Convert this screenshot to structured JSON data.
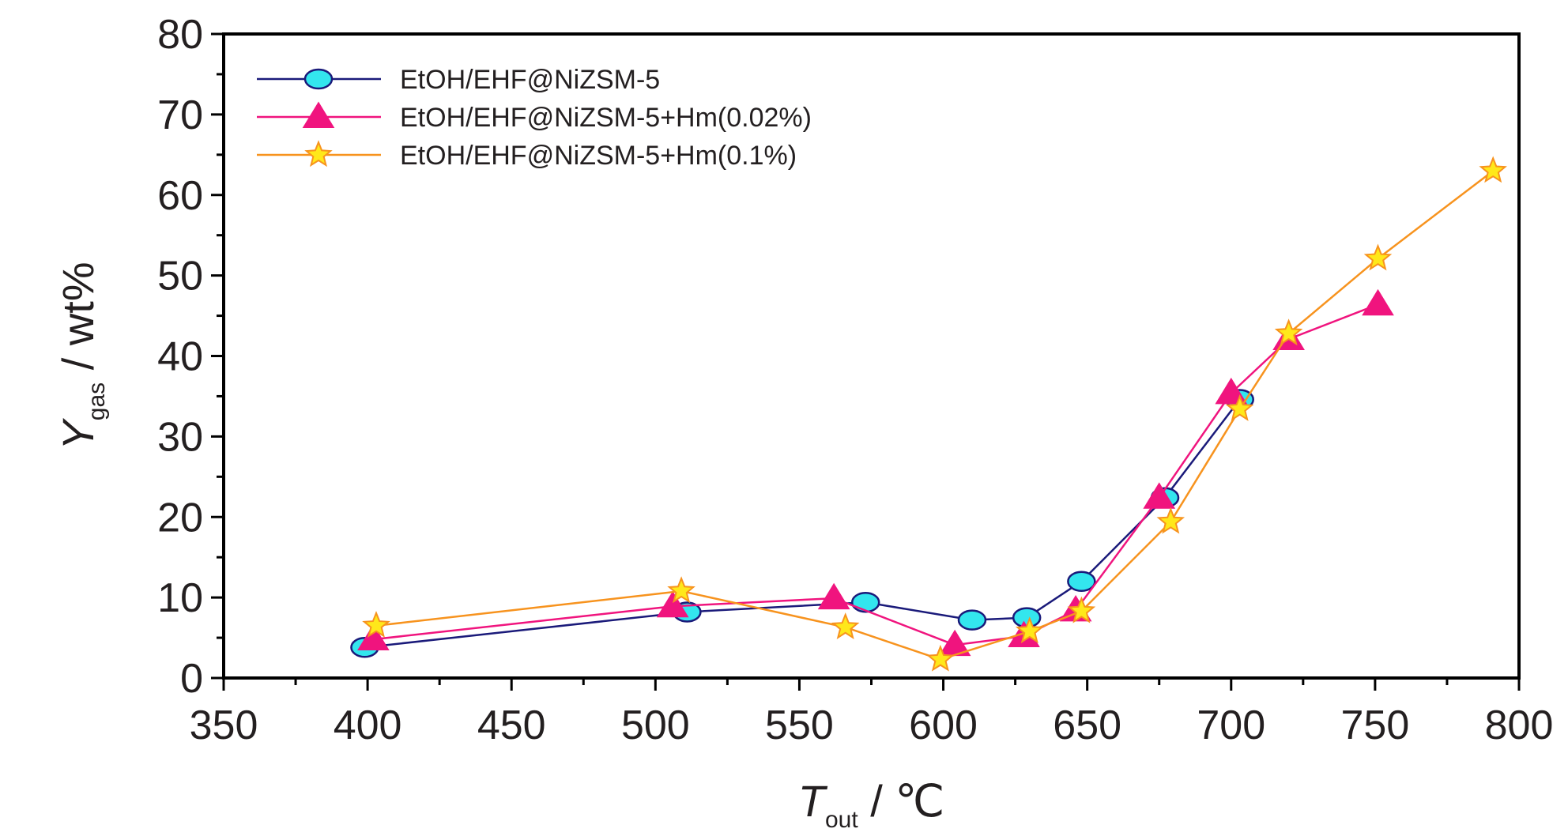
{
  "chart_data": {
    "type": "line",
    "title": "",
    "xlabel": {
      "main": "T",
      "sub": "out",
      "unit": " / ℃"
    },
    "ylabel": {
      "main": "Y",
      "sub": "gas",
      "unit": " / wt%"
    },
    "xlim": [
      350,
      800
    ],
    "ylim": [
      0,
      80
    ],
    "xticks": [
      350,
      400,
      450,
      500,
      550,
      600,
      650,
      700,
      750,
      800
    ],
    "yticks": [
      0,
      10,
      20,
      30,
      40,
      50,
      60,
      70,
      80
    ],
    "xtick_labels": [
      "350",
      "400",
      "450",
      "500",
      "550",
      "600",
      "650",
      "700",
      "750",
      "800"
    ],
    "ytick_labels": [
      "0",
      "10",
      "20",
      "30",
      "40",
      "50",
      "60",
      "70",
      "80"
    ],
    "grid": false,
    "legend_position": "top-left",
    "series": [
      {
        "name": "EtOH/EHF@NiZSM-5",
        "color": "#1a1a7a",
        "marker": "circle",
        "marker_fill": "#33e6ee",
        "x": [
          399,
          511,
          573,
          610,
          629,
          648,
          677,
          703
        ],
        "y": [
          3.8,
          8.2,
          9.4,
          7.2,
          7.5,
          12.0,
          22.4,
          34.6
        ]
      },
      {
        "name": "EtOH/EHF@NiZSM-5+Hm(0.02%)",
        "color": "#f0147e",
        "marker": "triangle",
        "marker_fill": "#f0147e",
        "x": [
          402,
          506,
          562,
          604,
          628,
          646,
          675,
          700,
          720,
          751
        ],
        "y": [
          4.8,
          8.9,
          9.9,
          4.1,
          5.2,
          8.4,
          22.4,
          35.4,
          42.1,
          46.4
        ]
      },
      {
        "name": "EtOH/EHF@NiZSM-5+Hm(0.1%)",
        "color": "#f7931e",
        "marker": "star",
        "marker_fill": "#ffe81a",
        "x": [
          403,
          509,
          566,
          599,
          630,
          648,
          679,
          703,
          720,
          751,
          791
        ],
        "y": [
          6.5,
          10.8,
          6.3,
          2.3,
          5.8,
          8.3,
          19.4,
          33.4,
          42.8,
          52.1,
          63.0
        ]
      }
    ]
  }
}
